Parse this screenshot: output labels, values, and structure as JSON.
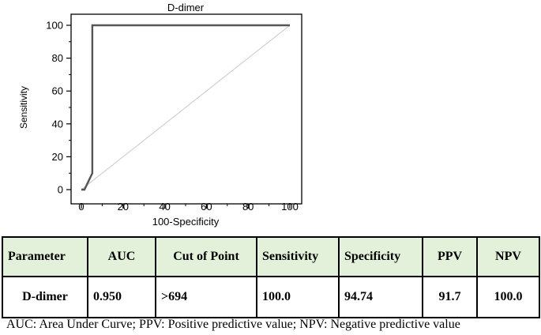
{
  "chart_data": {
    "type": "line",
    "title": "D-dimer",
    "xlabel": "100-Specificity",
    "ylabel": "Sensitivity",
    "xlim": [
      0,
      100
    ],
    "ylim": [
      0,
      100
    ],
    "xticks": [
      0,
      20,
      40,
      60,
      80,
      100
    ],
    "yticks": [
      0,
      20,
      40,
      60,
      80,
      100
    ],
    "grid": false,
    "series": [
      {
        "x": [
          0,
          0,
          1.5,
          5.26,
          5.26,
          100
        ],
        "y": [
          0,
          0,
          0,
          10,
          100,
          100
        ],
        "color": "#555555"
      },
      {
        "x": [
          0,
          100
        ],
        "y": [
          0,
          100
        ],
        "color": "#c8c8c8"
      }
    ]
  },
  "table": {
    "headers": [
      "Parameter",
      "AUC",
      "Cut of Point",
      "Sensitivity",
      "Specificity",
      "PPV",
      "NPV"
    ],
    "rows": [
      [
        "D-dimer",
        "0.950",
        ">694",
        "100.0",
        "94.74",
        "91.7",
        "100.0"
      ]
    ]
  },
  "footnote": "AUC: Area Under Curve; PPV: Positive predictive value; NPV: Negative predictive value"
}
